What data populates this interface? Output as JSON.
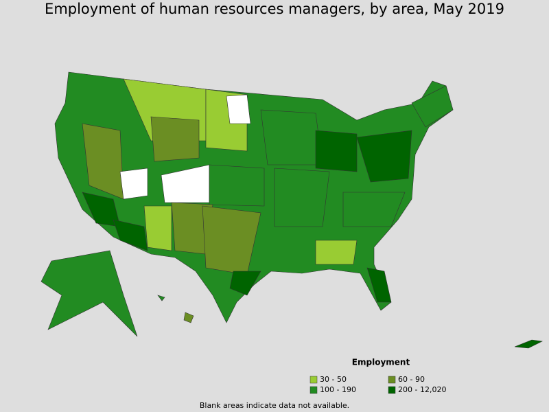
{
  "title": "Employment of human resources managers, by area, May 2019",
  "legend": {
    "title": "Employment",
    "items": [
      {
        "label": "30 - 50",
        "color": "#99cc33"
      },
      {
        "label": "60 - 90",
        "color": "#6b8e23"
      },
      {
        "label": "100 - 190",
        "color": "#228b22"
      },
      {
        "label": "200 - 12,020",
        "color": "#006400"
      }
    ]
  },
  "footnote": "Blank areas indicate data not available."
}
